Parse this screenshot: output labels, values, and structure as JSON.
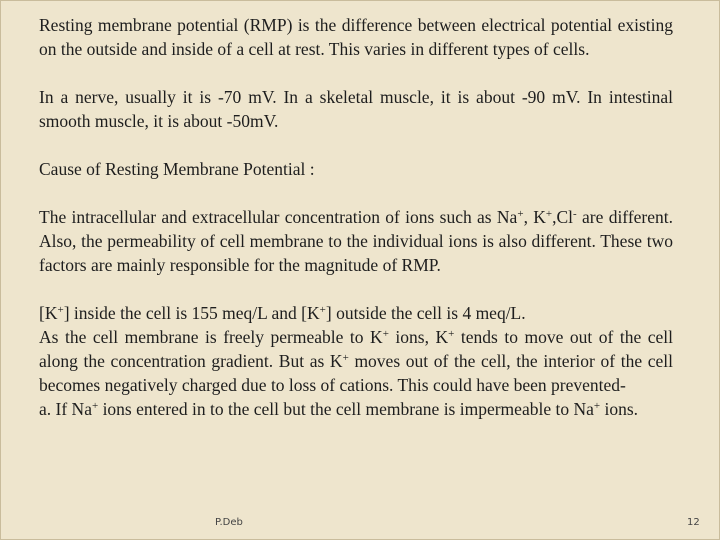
{
  "body": {
    "paragraphs": [
      {
        "runs": [
          "Resting  membrane potential (RMP) is the difference between electrical potential existing on the outside and inside of a cell at rest. This varies in different types of cells."
        ]
      },
      {
        "runs": [
          "In a nerve, usually it is -70 mV. In a skeletal muscle, it is about -90 mV. In intestinal smooth muscle, it is about -50mV."
        ]
      },
      {
        "runs": [
          "Cause of Resting Membrane Potential :"
        ]
      },
      {
        "runs": [
          "The intracellular and extracellular concentration of ions such as Na",
          {
            "sup": "+"
          },
          ", K",
          {
            "sup": "+"
          },
          ",Cl",
          {
            "sup": "-"
          },
          " are different. Also, the permeability of cell membrane to the individual ions is also different. These two factors are mainly responsible for the magnitude of RMP."
        ]
      },
      {
        "runs": [
          "[K",
          {
            "sup": "+"
          },
          "] inside the cell is 155 meq/L and [K",
          {
            "sup": "+"
          },
          "] outside the cell is 4 meq/L."
        ]
      },
      {
        "runs": [
          "As the cell membrane is freely permeable to K",
          {
            "sup": "+"
          },
          " ions, K",
          {
            "sup": "+"
          },
          " tends to move out of the cell along the concentration gradient. But as K",
          {
            "sup": "+"
          },
          " moves out of the cell, the interior of the cell becomes negatively charged due to loss of cations. This could have been prevented-"
        ]
      }
    ],
    "list_item": {
      "marker": "a.",
      "runs": [
        " If Na",
        {
          "sup": "+"
        },
        " ions entered in to the cell but the cell membrane is impermeable to Na",
        {
          "sup": "+"
        },
        " ions."
      ]
    }
  },
  "footer": {
    "author": "P.Deb",
    "page_number": "12"
  }
}
